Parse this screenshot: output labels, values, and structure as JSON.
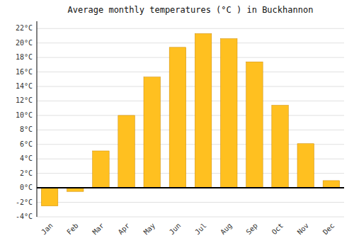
{
  "chart_data": {
    "type": "bar",
    "title": "Average monthly temperatures (°C ) in Buckhannon",
    "categories": [
      "Jan",
      "Feb",
      "Mar",
      "Apr",
      "May",
      "Jun",
      "Jul",
      "Aug",
      "Sep",
      "Oct",
      "Nov",
      "Dec"
    ],
    "values": [
      -2.5,
      -0.5,
      5.1,
      10.0,
      15.3,
      19.4,
      21.3,
      20.6,
      17.4,
      11.4,
      6.1,
      1.0
    ],
    "color": "#FFC020",
    "ylim": [
      -4,
      23
    ],
    "yticks": [
      {
        "value": -4,
        "label": "-4°C"
      },
      {
        "value": -2,
        "label": "-2°C"
      },
      {
        "value": 0,
        "label": "0°C"
      },
      {
        "value": 2,
        "label": "2°C"
      },
      {
        "value": 4,
        "label": "4°C"
      },
      {
        "value": 6,
        "label": "6°C"
      },
      {
        "value": 8,
        "label": "8°C"
      },
      {
        "value": 10,
        "label": "10°C"
      },
      {
        "value": 12,
        "label": "12°C"
      },
      {
        "value": 14,
        "label": "14°C"
      },
      {
        "value": 16,
        "label": "16°C"
      },
      {
        "value": 18,
        "label": "18°C"
      },
      {
        "value": 20,
        "label": "20°C"
      },
      {
        "value": 22,
        "label": "22°C"
      }
    ],
    "grid": true
  }
}
